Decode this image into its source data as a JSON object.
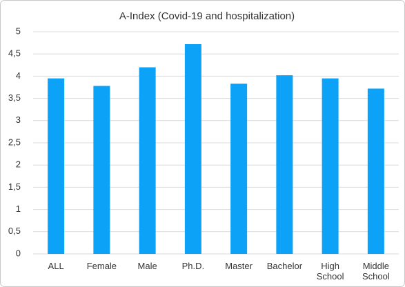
{
  "chart_data": {
    "type": "bar",
    "title": "A-Index (Covid-19 and hospitalization)",
    "categories": [
      "ALL",
      "Female",
      "Male",
      "Ph.D.",
      "Master",
      "Bachelor",
      "High School",
      "Middle School"
    ],
    "values": [
      3.95,
      3.78,
      4.2,
      4.72,
      3.83,
      4.02,
      3.95,
      3.72
    ],
    "color": "#0ba2f7",
    "ylim": [
      0,
      5
    ],
    "yticks": [
      0,
      {
        "value": 0.5,
        "label": "0,5"
      },
      1,
      {
        "value": 1.5,
        "label": "1,5"
      },
      2,
      {
        "value": 2.5,
        "label": "2,5"
      },
      3,
      {
        "value": 3.5,
        "label": "3,5"
      },
      4,
      {
        "value": 4.5,
        "label": "4,5"
      },
      5
    ],
    "grid": true
  }
}
